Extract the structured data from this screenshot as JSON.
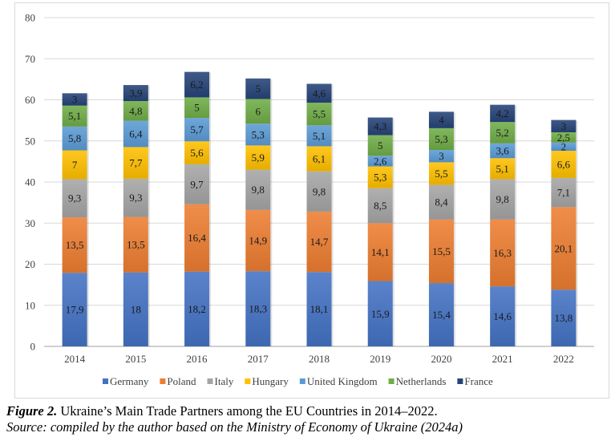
{
  "chart_data": {
    "type": "bar",
    "stacked": true,
    "title": "",
    "xlabel": "",
    "ylabel": "",
    "ylim": [
      0,
      80
    ],
    "yticks": [
      0,
      10,
      20,
      30,
      40,
      50,
      60,
      70,
      80
    ],
    "grid": true,
    "legend_position": "bottom",
    "decimal_separator": ",",
    "categories": [
      "2014",
      "2015",
      "2016",
      "2017",
      "2018",
      "2019",
      "2020",
      "2021",
      "2022"
    ],
    "series": [
      {
        "name": "Germany",
        "color": "#4472c4",
        "values": [
          17.9,
          18,
          18.2,
          18.3,
          18.1,
          15.9,
          15.4,
          14.6,
          13.8
        ]
      },
      {
        "name": "Poland",
        "color": "#ed7d31",
        "values": [
          13.5,
          13.5,
          16.4,
          14.9,
          14.7,
          14.1,
          15.5,
          16.3,
          20.1
        ]
      },
      {
        "name": "Italy",
        "color": "#a5a5a5",
        "values": [
          9.3,
          9.3,
          9.7,
          9.8,
          9.8,
          8.5,
          8.4,
          9.8,
          7.1
        ]
      },
      {
        "name": "Hungary",
        "color": "#ffc000",
        "values": [
          7,
          7.7,
          5.6,
          5.9,
          6.1,
          5.3,
          5.5,
          5.1,
          6.6
        ]
      },
      {
        "name": "United Kingdom",
        "color": "#5b9bd5",
        "values": [
          5.8,
          6.4,
          5.7,
          5.3,
          5.1,
          2.6,
          3,
          3.6,
          2
        ]
      },
      {
        "name": "Netherlands",
        "color": "#70ad47",
        "values": [
          5.1,
          4.8,
          5,
          6,
          5.5,
          5,
          5.3,
          5.2,
          2.5
        ]
      },
      {
        "name": "France",
        "color": "#264478",
        "values": [
          3,
          3.9,
          6.2,
          5,
          4.6,
          4.3,
          4,
          4.2,
          3
        ]
      }
    ]
  },
  "caption": {
    "figure_label": "Figure 2.",
    "figure_text": " Ukraine’s Main Trade Partners among the EU Countries in 2014–2022.",
    "source": "Source: compiled by the author based on the Ministry of Economy of Ukraine (2024a)"
  }
}
